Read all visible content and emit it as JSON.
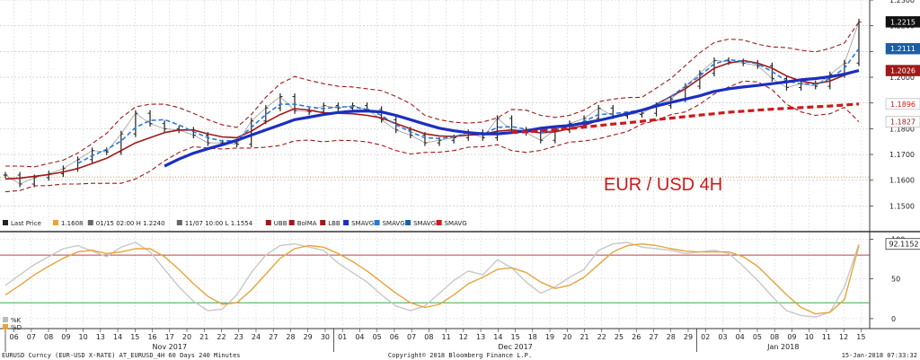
{
  "chart_data": [
    {
      "type": "line",
      "title": "",
      "annotation": "EUR / USD 4H",
      "ylim": [
        1.147,
        1.23
      ],
      "y_ticks": [
        "1.2300",
        "1.2200",
        "1.2100",
        "1.2000",
        "1.1900",
        "1.1800",
        "1.1700",
        "1.1600",
        "1.1500"
      ],
      "grid": true,
      "support_level": 1.1612,
      "legend": [
        {
          "label": "Last Price",
          "color": "#222222"
        },
        {
          "label": "1.1608",
          "color": "#e8a33a"
        },
        {
          "label": "01/15 02:00 H 1.2240",
          "color": "#666666"
        },
        {
          "label": "11/07 10:00 L 1.1554",
          "color": "#666666"
        },
        {
          "label": "UBB",
          "color": "#a01818"
        },
        {
          "label": "BolMA",
          "color": "#a01818"
        },
        {
          "label": "LBB",
          "color": "#a01818"
        },
        {
          "label": "SMAVG",
          "color": "#1b2fbf"
        },
        {
          "label": "SMAVG",
          "color": "#2a78d8"
        },
        {
          "label": "SMAVG",
          "color": "#1a5fa8"
        },
        {
          "label": "SMAVG",
          "color": "#cc1a1a"
        }
      ],
      "price_tags": [
        {
          "label": "1.2215",
          "value": 1.2215,
          "bg": "#111111",
          "fg": "#ffffff"
        },
        {
          "label": "1.2111",
          "value": 1.2111,
          "bg": "#1a5fa8",
          "fg": "#ffffff"
        },
        {
          "label": "1.2026",
          "value": 1.2026,
          "bg": "#a01818",
          "fg": "#ffffff"
        },
        {
          "label": "1.1896",
          "value": 1.1896,
          "bg": "#ffffff",
          "fg": "#cc1a1a"
        },
        {
          "label": "1.1827",
          "value": 1.1827,
          "bg": "#ffffff",
          "fg": "#a01818"
        }
      ],
      "series": [
        {
          "name": "Last Price",
          "color": "#222222",
          "style": "ohlc",
          "values": [
            1.162,
            1.1585,
            1.161,
            1.1625,
            1.1645,
            1.168,
            1.1715,
            1.171,
            1.178,
            1.186,
            1.182,
            1.18,
            1.1795,
            1.1775,
            1.1745,
            1.1745,
            1.174,
            1.183,
            1.188,
            1.1925,
            1.187,
            1.1865,
            1.189,
            1.188,
            1.189,
            1.1875,
            1.1835,
            1.1795,
            1.1775,
            1.1745,
            1.1755,
            1.1765,
            1.1785,
            1.1765,
            1.184,
            1.1795,
            1.1785,
            1.1755,
            1.1795,
            1.182,
            1.184,
            1.188,
            1.185,
            1.1855,
            1.186,
            1.189,
            1.1915,
            1.1965,
            1.2015,
            1.2065,
            1.206,
            1.2055,
            1.2045,
            1.1995,
            1.196,
            1.1975,
            1.1965,
            1.201,
            1.2055,
            1.2215
          ]
        },
        {
          "name": "BolMA",
          "color": "#a01818",
          "style": "solid",
          "width": 1.6,
          "values": [
            1.1605,
            1.1608,
            1.1615,
            1.1622,
            1.1632,
            1.1645,
            1.1665,
            1.1685,
            1.1715,
            1.1745,
            1.1765,
            1.1785,
            1.1795,
            1.1795,
            1.178,
            1.1768,
            1.1765,
            1.179,
            1.1825,
            1.1855,
            1.1878,
            1.1872,
            1.1862,
            1.186,
            1.1858,
            1.1852,
            1.1842,
            1.182,
            1.18,
            1.178,
            1.1772,
            1.177,
            1.1775,
            1.1778,
            1.179,
            1.1795,
            1.179,
            1.1784,
            1.1788,
            1.18,
            1.1812,
            1.1833,
            1.1845,
            1.1855,
            1.187,
            1.1895,
            1.1925,
            1.1955,
            1.1995,
            1.2035,
            1.2055,
            1.2065,
            1.2055,
            1.2035,
            1.2005,
            1.1985,
            1.1975,
            1.1985,
            1.2008,
            1.2026
          ]
        },
        {
          "name": "UBB",
          "color": "#a01818",
          "style": "dashed",
          "width": 1.1,
          "values": [
            1.1655,
            1.1655,
            1.1652,
            1.1665,
            1.1678,
            1.1705,
            1.1742,
            1.1782,
            1.1842,
            1.1885,
            1.1895,
            1.1895,
            1.1882,
            1.186,
            1.1835,
            1.1815,
            1.1805,
            1.1855,
            1.1922,
            1.1975,
            1.2003,
            1.1988,
            1.1975,
            1.1965,
            1.1962,
            1.1955,
            1.1948,
            1.1925,
            1.1898,
            1.1852,
            1.1835,
            1.1825,
            1.1822,
            1.1826,
            1.1842,
            1.1875,
            1.1872,
            1.1852,
            1.1844,
            1.1852,
            1.1872,
            1.1905,
            1.1915,
            1.1921,
            1.1922,
            1.1958,
            1.1995,
            1.2045,
            1.2095,
            1.2135,
            1.2148,
            1.2145,
            1.2128,
            1.2118,
            1.2115,
            1.2105,
            1.2098,
            1.2112,
            1.2133,
            1.2215
          ]
        },
        {
          "name": "LBB",
          "color": "#a01818",
          "style": "dashed",
          "width": 1.1,
          "values": [
            1.1555,
            1.156,
            1.1578,
            1.1579,
            1.1585,
            1.1585,
            1.1588,
            1.1588,
            1.1588,
            1.1605,
            1.1635,
            1.1675,
            1.1708,
            1.173,
            1.1725,
            1.1721,
            1.1725,
            1.1725,
            1.1728,
            1.1735,
            1.1753,
            1.1756,
            1.1749,
            1.1755,
            1.1754,
            1.1749,
            1.1736,
            1.1715,
            1.1702,
            1.1708,
            1.1709,
            1.1715,
            1.1728,
            1.173,
            1.1738,
            1.1715,
            1.1708,
            1.1716,
            1.1732,
            1.1748,
            1.1752,
            1.1761,
            1.1775,
            1.1789,
            1.1818,
            1.1832,
            1.1855,
            1.1865,
            1.1895,
            1.1935,
            1.1962,
            1.1985,
            1.1982,
            1.1952,
            1.1895,
            1.1865,
            1.1852,
            1.1858,
            1.1883,
            1.1827
          ]
        },
        {
          "name": "SMAVG",
          "color": "#2a78d8",
          "style": "dashed",
          "width": 1.6,
          "values": [
            null,
            null,
            null,
            null,
            null,
            1.1665,
            1.1695,
            1.172,
            1.1752,
            1.1805,
            1.1832,
            1.1835,
            1.1815,
            1.1788,
            1.1765,
            1.1752,
            1.1755,
            1.1805,
            1.1855,
            1.1895,
            1.1895,
            1.1885,
            1.1878,
            1.1885,
            1.1885,
            1.1875,
            1.1852,
            1.1815,
            1.1788,
            1.1765,
            1.1762,
            1.1768,
            1.1785,
            1.1778,
            1.1805,
            1.1808,
            1.1798,
            1.1785,
            1.1792,
            1.1812,
            1.1828,
            1.1855,
            1.1858,
            1.1865,
            1.1872,
            1.1895,
            1.1925,
            1.1965,
            1.2005,
            1.2052,
            1.2068,
            1.2062,
            1.2052,
            1.2022,
            1.1985,
            1.1975,
            1.1972,
            1.1995,
            1.2035,
            1.2111
          ]
        },
        {
          "name": "SMAVG",
          "color": "#1b2fbf",
          "style": "solid",
          "width": 3.2,
          "values": [
            null,
            null,
            null,
            null,
            null,
            null,
            null,
            null,
            null,
            null,
            null,
            1.1655,
            1.1682,
            1.1705,
            1.1722,
            1.1738,
            1.1755,
            1.1775,
            1.1795,
            1.1815,
            1.1835,
            1.1845,
            1.1855,
            1.1863,
            1.1868,
            1.1869,
            1.1865,
            1.1852,
            1.1835,
            1.1818,
            1.1802,
            1.1792,
            1.1785,
            1.178,
            1.178,
            1.1785,
            1.1792,
            1.1802,
            1.1808,
            1.1812,
            1.1822,
            1.1832,
            1.1845,
            1.1858,
            1.1872,
            1.1888,
            1.1902,
            1.1915,
            1.1928,
            1.1945,
            1.1955,
            1.1962,
            1.1968,
            1.1975,
            1.1982,
            1.199,
            1.1995,
            1.2002,
            1.2012,
            1.2026
          ]
        },
        {
          "name": "SMAVG",
          "color": "#cc1a1a",
          "style": "dashed",
          "width": 3.2,
          "values": [
            null,
            null,
            null,
            null,
            null,
            null,
            null,
            null,
            null,
            null,
            null,
            null,
            null,
            null,
            null,
            null,
            null,
            null,
            null,
            null,
            null,
            null,
            null,
            null,
            null,
            null,
            null,
            null,
            null,
            null,
            null,
            null,
            null,
            null,
            null,
            1.1785,
            1.1788,
            1.1792,
            1.1796,
            1.1801,
            1.1806,
            1.1812,
            1.1818,
            1.1823,
            1.1829,
            1.1835,
            1.1841,
            1.1847,
            1.1853,
            1.1858,
            1.1864,
            1.1868,
            1.1872,
            1.1876,
            1.1879,
            1.1882,
            1.1885,
            1.1888,
            1.1892,
            1.1896
          ]
        }
      ]
    },
    {
      "type": "line",
      "title": "",
      "ylim": [
        -8,
        105
      ],
      "y_ticks": [
        "100",
        "50",
        "0"
      ],
      "overbought": 80,
      "oversold": 20,
      "last_value_tag": "92.1152",
      "legend": [
        {
          "label": "%K",
          "color": "#bbbbbb"
        },
        {
          "label": "%D",
          "color": "#e8a33a"
        }
      ],
      "series": [
        {
          "name": "%K",
          "color": "#c8c8c8",
          "style": "solid",
          "width": 1.4,
          "values": [
            42,
            55,
            68,
            78,
            88,
            92,
            85,
            78,
            90,
            96,
            84,
            62,
            40,
            22,
            10,
            12,
            30,
            58,
            80,
            92,
            94,
            90,
            86,
            70,
            58,
            46,
            30,
            16,
            10,
            16,
            32,
            48,
            60,
            55,
            74,
            64,
            46,
            32,
            40,
            52,
            62,
            86,
            94,
            96,
            90,
            88,
            86,
            82,
            84,
            86,
            82,
            66,
            48,
            28,
            10,
            4,
            2,
            8,
            40,
            94
          ]
        },
        {
          "name": "%D",
          "color": "#e8a33a",
          "style": "solid",
          "width": 1.4,
          "values": [
            30,
            42,
            55,
            66,
            76,
            84,
            86,
            82,
            84,
            88,
            88,
            78,
            62,
            44,
            28,
            18,
            20,
            36,
            56,
            76,
            88,
            92,
            90,
            82,
            72,
            60,
            46,
            32,
            20,
            14,
            18,
            30,
            44,
            52,
            62,
            64,
            58,
            46,
            38,
            42,
            52,
            68,
            84,
            92,
            94,
            92,
            88,
            85,
            84,
            84,
            84,
            78,
            66,
            48,
            30,
            14,
            6,
            8,
            24,
            92
          ]
        }
      ]
    }
  ],
  "x_axis": {
    "day_ticks": [
      "06",
      "07",
      "08",
      "09",
      "10",
      "13",
      "14",
      "15",
      "16",
      "17",
      "20",
      "21",
      "22",
      "23",
      "24",
      "27",
      "28",
      "29",
      "30",
      "01",
      "04",
      "05",
      "06",
      "07",
      "08",
      "11",
      "12",
      "13",
      "14",
      "15",
      "18",
      "19",
      "20",
      "21",
      "22",
      "25",
      "26",
      "27",
      "28",
      "29",
      "02",
      "03",
      "04",
      "05",
      "08",
      "09",
      "10",
      "11",
      "12",
      "15"
    ],
    "month_labels": [
      {
        "label": "Nov 2017",
        "start": 0,
        "end": 19
      },
      {
        "label": "Dec 2017",
        "start": 19,
        "end": 40
      },
      {
        "label": "Jan 2018",
        "start": 40,
        "end": 50
      }
    ]
  },
  "footer": {
    "left": "EURUSD Curncy (EUR-USD X-RATE) AT_EURUSD_4H 60 Days 240 Minutes",
    "center": "Copyright© 2018 Bloomberg Finance L.P.",
    "right": "15-Jan-2018 07:33:32"
  }
}
